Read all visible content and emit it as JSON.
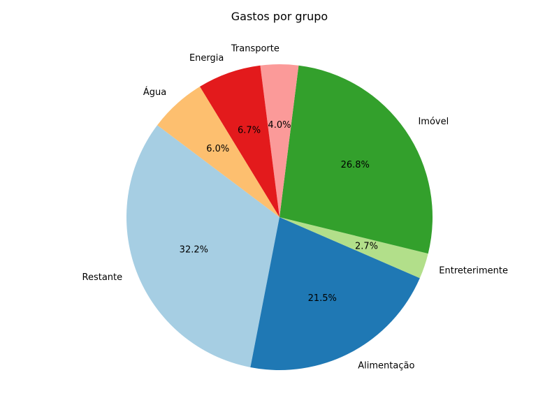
{
  "chart_data": {
    "type": "pie",
    "title": "Gastos por grupo",
    "slices": [
      {
        "label": "Restante",
        "percent_label": "32.2%",
        "value": 32.2,
        "color": "#a6cee3"
      },
      {
        "label": "Alimentação",
        "percent_label": "21.5%",
        "value": 21.5,
        "color": "#1f78b4"
      },
      {
        "label": "Entreterimente",
        "percent_label": "2.7%",
        "value": 2.7,
        "color": "#b2df8a"
      },
      {
        "label": "Imóvel",
        "percent_label": "26.8%",
        "value": 26.8,
        "color": "#33a02c"
      },
      {
        "label": "Transporte",
        "percent_label": "4.0%",
        "value": 4.0,
        "color": "#fb9a99"
      },
      {
        "label": "Energia",
        "percent_label": "6.7%",
        "value": 6.7,
        "color": "#e31a1c"
      },
      {
        "label": "Água",
        "percent_label": "6.0%",
        "value": 6.0,
        "color": "#fdbf6f"
      }
    ],
    "legend": "none"
  }
}
